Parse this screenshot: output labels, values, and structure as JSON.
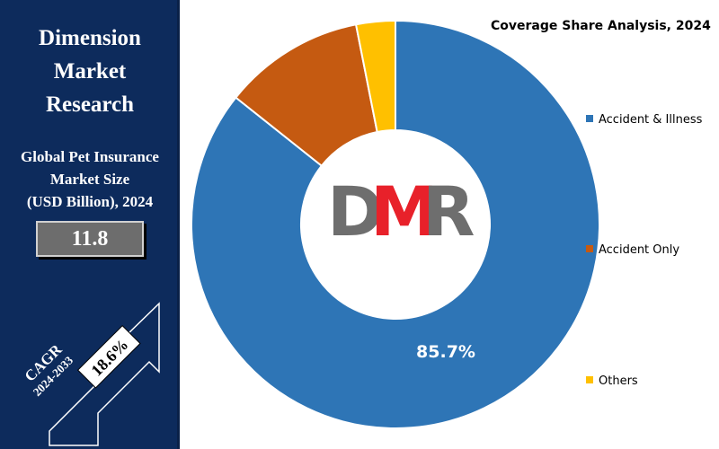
{
  "brand": {
    "line1": "Dimension",
    "line2": "Market",
    "line3": "Research"
  },
  "market": {
    "label_line1": "Global Pet Insurance",
    "label_line2": "Market Size",
    "label_line3": "(USD Billion), 2024",
    "value": "11.8"
  },
  "cagr": {
    "label": "CAGR",
    "period": "2024-2033",
    "value": "18.6%"
  },
  "logo": {
    "text": "DMR"
  },
  "colors": {
    "panel": "#0d2b5c",
    "accident_illness": "#2e75b6",
    "accident_only": "#c55a11",
    "others": "#ffc000",
    "logo_gray": "#6e6e6e",
    "logo_red": "#e8212a"
  },
  "chart_data": {
    "type": "pie",
    "title": "Coverage Share Analysis, 2024",
    "donut": true,
    "series": [
      {
        "name": "Accident & Illness",
        "value": 85.7,
        "color": "#2e75b6",
        "label": "85.7%"
      },
      {
        "name": "Accident Only",
        "value": 11.2,
        "color": "#c55a11"
      },
      {
        "name": "Others",
        "value": 3.1,
        "color": "#ffc000"
      }
    ],
    "legend_position": "right"
  }
}
